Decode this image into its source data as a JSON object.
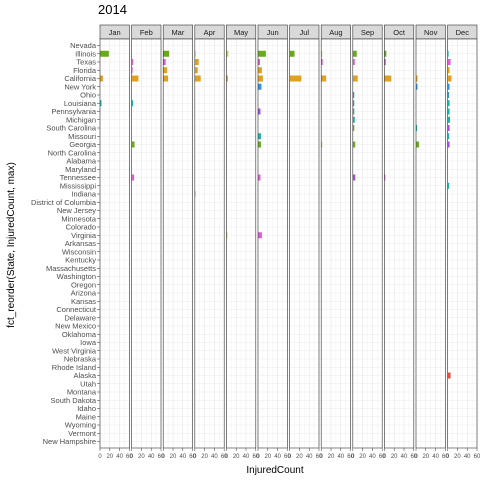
{
  "chart_data": {
    "type": "bar",
    "orientation": "horizontal",
    "title": "2014",
    "xlabel": "InjuredCount",
    "ylabel": "fct_reorder(State, InjuredCount, max)",
    "xlim": [
      0,
      60
    ],
    "xticks": [
      "0",
      "20",
      "40",
      "60"
    ],
    "grid": true,
    "legend": "none",
    "months": [
      "Jan",
      "Feb",
      "Mar",
      "Apr",
      "May",
      "Jun",
      "Jul",
      "Aug",
      "Sep",
      "Oct",
      "Nov",
      "Dec"
    ],
    "month_colors": [
      "#6aaa1a",
      "#e05bd8",
      "#6aaa1a",
      "#e0a020",
      "#cccc55",
      "#5aa0d0",
      "#6aaa1a",
      "#e05bd8",
      "#3b8fd8",
      "#e05bd8",
      "#e0a020",
      "#3b8fd8"
    ],
    "states": [
      "Nevada",
      "Illinois",
      "Texas",
      "Florida",
      "California",
      "New York",
      "Ohio",
      "Louisiana",
      "Pennsylvania",
      "Michigan",
      "South Carolina",
      "Missouri",
      "Georgia",
      "North Carolina",
      "Alabama",
      "Maryland",
      "Tennessee",
      "Mississippi",
      "Indiana",
      "District of Columbia",
      "New Jersey",
      "Minnesota",
      "Colorado",
      "Virginia",
      "Arkansas",
      "Wisconsin",
      "Kentucky",
      "Massachusetts",
      "Washington",
      "Oregon",
      "Arizona",
      "Kansas",
      "Connecticut",
      "Delaware",
      "New Mexico",
      "Oklahoma",
      "Iowa",
      "West Virginia",
      "Nebraska",
      "Rhode Island",
      "Alaska",
      "Utah",
      "Montana",
      "South Dakota",
      "Idaho",
      "Maine",
      "Wyoming",
      "Vermont",
      "New Hampshire"
    ],
    "values": [
      {
        "month": "Jan",
        "state": "Illinois",
        "value": 18,
        "color": "#6aaa1a"
      },
      {
        "month": "Jan",
        "state": "California",
        "value": 6,
        "color": "#e0a020"
      },
      {
        "month": "Jan",
        "state": "Louisiana",
        "value": 3,
        "color": "#20b0a0"
      },
      {
        "month": "Feb",
        "state": "Texas",
        "value": 3,
        "color": "#e05bd8"
      },
      {
        "month": "Feb",
        "state": "Florida",
        "value": 2,
        "color": "#e05bd8"
      },
      {
        "month": "Feb",
        "state": "California",
        "value": 14,
        "color": "#e0a020"
      },
      {
        "month": "Feb",
        "state": "Louisiana",
        "value": 3,
        "color": "#20b0a0"
      },
      {
        "month": "Feb",
        "state": "Georgia",
        "value": 6,
        "color": "#6aaa1a"
      },
      {
        "month": "Feb",
        "state": "Tennessee",
        "value": 5,
        "color": "#e05bd8"
      },
      {
        "month": "Mar",
        "state": "Illinois",
        "value": 12,
        "color": "#6aaa1a"
      },
      {
        "month": "Mar",
        "state": "Texas",
        "value": 5,
        "color": "#e05bd8"
      },
      {
        "month": "Mar",
        "state": "Florida",
        "value": 8,
        "color": "#e0a020"
      },
      {
        "month": "Mar",
        "state": "California",
        "value": 10,
        "color": "#e0a020"
      },
      {
        "month": "Apr",
        "state": "Illinois",
        "value": 2,
        "color": "#cccc55"
      },
      {
        "month": "Apr",
        "state": "Texas",
        "value": 8,
        "color": "#e0a020"
      },
      {
        "month": "Apr",
        "state": "Florida",
        "value": 6,
        "color": "#e0a020"
      },
      {
        "month": "Apr",
        "state": "California",
        "value": 12,
        "color": "#e0a020"
      },
      {
        "month": "Apr",
        "state": "Indiana",
        "value": 2,
        "color": "#cccc55"
      },
      {
        "month": "May",
        "state": "Illinois",
        "value": 4,
        "color": "#cccc55"
      },
      {
        "month": "May",
        "state": "California",
        "value": 3,
        "color": "#e0a020"
      },
      {
        "month": "May",
        "state": "Virginia",
        "value": 2,
        "color": "#cccc55"
      },
      {
        "month": "Jun",
        "state": "Illinois",
        "value": 16,
        "color": "#6aaa1a"
      },
      {
        "month": "Jun",
        "state": "Texas",
        "value": 4,
        "color": "#e05bd8"
      },
      {
        "month": "Jun",
        "state": "Florida",
        "value": 8,
        "color": "#e0a020"
      },
      {
        "month": "Jun",
        "state": "California",
        "value": 10,
        "color": "#e0a020"
      },
      {
        "month": "Jun",
        "state": "New York",
        "value": 7,
        "color": "#3b8fd8"
      },
      {
        "month": "Jun",
        "state": "Pennsylvania",
        "value": 5,
        "color": "#a050e0"
      },
      {
        "month": "Jun",
        "state": "Missouri",
        "value": 6,
        "color": "#20b0a0"
      },
      {
        "month": "Jun",
        "state": "Georgia",
        "value": 6,
        "color": "#6aaa1a"
      },
      {
        "month": "Jun",
        "state": "Tennessee",
        "value": 5,
        "color": "#e05bd8"
      },
      {
        "month": "Jun",
        "state": "Virginia",
        "value": 8,
        "color": "#e05bd8"
      },
      {
        "month": "Jul",
        "state": "Illinois",
        "value": 10,
        "color": "#6aaa1a"
      },
      {
        "month": "Jul",
        "state": "California",
        "value": 24,
        "color": "#e0a020"
      },
      {
        "month": "Aug",
        "state": "Illinois",
        "value": 2,
        "color": "#cccc55"
      },
      {
        "month": "Aug",
        "state": "Texas",
        "value": 3,
        "color": "#e05bd8"
      },
      {
        "month": "Aug",
        "state": "California",
        "value": 10,
        "color": "#e0a020"
      },
      {
        "month": "Aug",
        "state": "Georgia",
        "value": 2,
        "color": "#cccc55"
      },
      {
        "month": "Sep",
        "state": "Illinois",
        "value": 8,
        "color": "#6aaa1a"
      },
      {
        "month": "Sep",
        "state": "Texas",
        "value": 4,
        "color": "#e05bd8"
      },
      {
        "month": "Sep",
        "state": "California",
        "value": 10,
        "color": "#e0a020"
      },
      {
        "month": "Sep",
        "state": "Ohio",
        "value": 3,
        "color": "#3b8fd8"
      },
      {
        "month": "Sep",
        "state": "Louisiana",
        "value": 3,
        "color": "#3b8fd8"
      },
      {
        "month": "Sep",
        "state": "Pennsylvania",
        "value": 3,
        "color": "#20b0a0"
      },
      {
        "month": "Sep",
        "state": "Michigan",
        "value": 4,
        "color": "#20b0a0"
      },
      {
        "month": "Sep",
        "state": "South Carolina",
        "value": 3,
        "color": "#6aaa1a"
      },
      {
        "month": "Sep",
        "state": "Georgia",
        "value": 5,
        "color": "#6aaa1a"
      },
      {
        "month": "Sep",
        "state": "Tennessee",
        "value": 5,
        "color": "#a050e0"
      },
      {
        "month": "Oct",
        "state": "Illinois",
        "value": 4,
        "color": "#6aaa1a"
      },
      {
        "month": "Oct",
        "state": "Texas",
        "value": 3,
        "color": "#e05bd8"
      },
      {
        "month": "Oct",
        "state": "California",
        "value": 14,
        "color": "#e0a020"
      },
      {
        "month": "Oct",
        "state": "Tennessee",
        "value": 2,
        "color": "#e05bd8"
      },
      {
        "month": "Nov",
        "state": "California",
        "value": 3,
        "color": "#e0a020"
      },
      {
        "month": "Nov",
        "state": "New York",
        "value": 3,
        "color": "#3b8fd8"
      },
      {
        "month": "Nov",
        "state": "Georgia",
        "value": 6,
        "color": "#6aaa1a"
      },
      {
        "month": "Nov",
        "state": "South Carolina",
        "value": 2,
        "color": "#20b0a0"
      },
      {
        "month": "Dec",
        "state": "Illinois",
        "value": 2,
        "color": "#20b0a0"
      },
      {
        "month": "Dec",
        "state": "Texas",
        "value": 6,
        "color": "#e05bd8"
      },
      {
        "month": "Dec",
        "state": "Florida",
        "value": 4,
        "color": "#e0a020"
      },
      {
        "month": "Dec",
        "state": "California",
        "value": 8,
        "color": "#e0a020"
      },
      {
        "month": "Dec",
        "state": "New York",
        "value": 4,
        "color": "#3b8fd8"
      },
      {
        "month": "Dec",
        "state": "Ohio",
        "value": 3,
        "color": "#3b8fd8"
      },
      {
        "month": "Dec",
        "state": "Louisiana",
        "value": 4,
        "color": "#20b0a0"
      },
      {
        "month": "Dec",
        "state": "Pennsylvania",
        "value": 4,
        "color": "#20b0a0"
      },
      {
        "month": "Dec",
        "state": "Michigan",
        "value": 5,
        "color": "#20b0a0"
      },
      {
        "month": "Dec",
        "state": "South Carolina",
        "value": 4,
        "color": "#a050e0"
      },
      {
        "month": "Dec",
        "state": "Missouri",
        "value": 3,
        "color": "#20b0a0"
      },
      {
        "month": "Dec",
        "state": "Georgia",
        "value": 4,
        "color": "#a050e0"
      },
      {
        "month": "Dec",
        "state": "Mississippi",
        "value": 3,
        "color": "#20b0a0"
      },
      {
        "month": "Dec",
        "state": "Alaska",
        "value": 6,
        "color": "#e05040"
      }
    ]
  }
}
